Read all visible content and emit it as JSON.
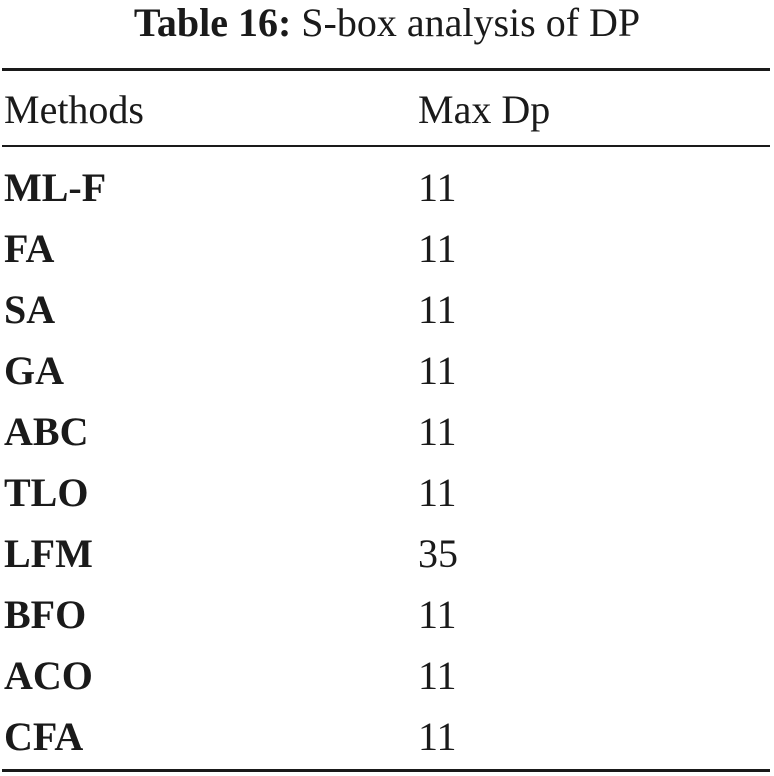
{
  "caption": {
    "label": "Table 16:",
    "text": "S-box analysis of DP"
  },
  "table": {
    "columns": [
      "Methods",
      "Max Dp"
    ],
    "rows": [
      {
        "method": "ML-F",
        "max_dp": "11"
      },
      {
        "method": "FA",
        "max_dp": "11"
      },
      {
        "method": "SA",
        "max_dp": "11"
      },
      {
        "method": "GA",
        "max_dp": "11"
      },
      {
        "method": "ABC",
        "max_dp": "11"
      },
      {
        "method": "TLO",
        "max_dp": "11"
      },
      {
        "method": "LFM",
        "max_dp": "35"
      },
      {
        "method": "BFO",
        "max_dp": "11"
      },
      {
        "method": "ACO",
        "max_dp": "11"
      },
      {
        "method": "CFA",
        "max_dp": "11"
      }
    ]
  }
}
